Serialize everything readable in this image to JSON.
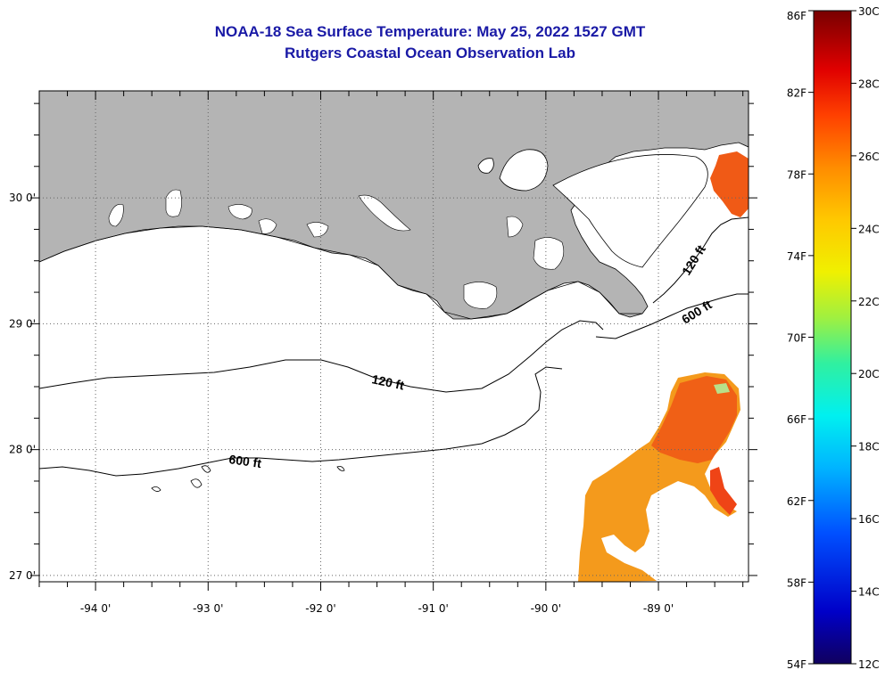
{
  "title": {
    "line1": "NOAA-18 Sea Surface Temperature:  May 25, 2022 1527 GMT",
    "line2": "Rutgers Coastal Ocean Observation Lab"
  },
  "map": {
    "lon_range": [
      -94.5,
      -88.2
    ],
    "lat_range": [
      26.95,
      30.85
    ],
    "lon_labels": [
      {
        "lon": -94,
        "text": "-94 0'"
      },
      {
        "lon": -93,
        "text": "-93 0'"
      },
      {
        "lon": -92,
        "text": "-92 0'"
      },
      {
        "lon": -91,
        "text": "-91 0'"
      },
      {
        "lon": -90,
        "text": "-90 0'"
      },
      {
        "lon": -89,
        "text": "-89 0'"
      }
    ],
    "lat_labels": [
      {
        "lat": 30,
        "text": "30 0'"
      },
      {
        "lat": 29,
        "text": "29 0'"
      },
      {
        "lat": 28,
        "text": "28 0'"
      },
      {
        "lat": 27,
        "text": "27 0'"
      }
    ],
    "contours": [
      {
        "label": "120 ft"
      },
      {
        "label": "600 ft"
      },
      {
        "label": "120 ft"
      },
      {
        "label": "600 ft"
      }
    ],
    "colors": {
      "land": "#b4b4b4",
      "water": "#ffffff",
      "grid": "#555555",
      "sst_orange": "#f28c1e",
      "sst_red_orange": "#f05a16",
      "sst_yellow_orange": "#f7a81a"
    }
  },
  "colorbar": {
    "fahrenheit": [
      {
        "value": 86,
        "text": "86F"
      },
      {
        "value": 82,
        "text": "82F"
      },
      {
        "value": 78,
        "text": "78F"
      },
      {
        "value": 74,
        "text": "74F"
      },
      {
        "value": 70,
        "text": "70F"
      },
      {
        "value": 66,
        "text": "66F"
      },
      {
        "value": 62,
        "text": "62F"
      },
      {
        "value": 58,
        "text": "58F"
      },
      {
        "value": 54,
        "text": "54F"
      }
    ],
    "celsius": [
      {
        "value": 30,
        "text": "30C"
      },
      {
        "value": 28,
        "text": "28C"
      },
      {
        "value": 26,
        "text": "26C"
      },
      {
        "value": 24,
        "text": "24C"
      },
      {
        "value": 22,
        "text": "22C"
      },
      {
        "value": 20,
        "text": "20C"
      },
      {
        "value": 18,
        "text": "18C"
      },
      {
        "value": 16,
        "text": "16C"
      },
      {
        "value": 14,
        "text": "14C"
      },
      {
        "value": 12,
        "text": "12C"
      }
    ]
  }
}
